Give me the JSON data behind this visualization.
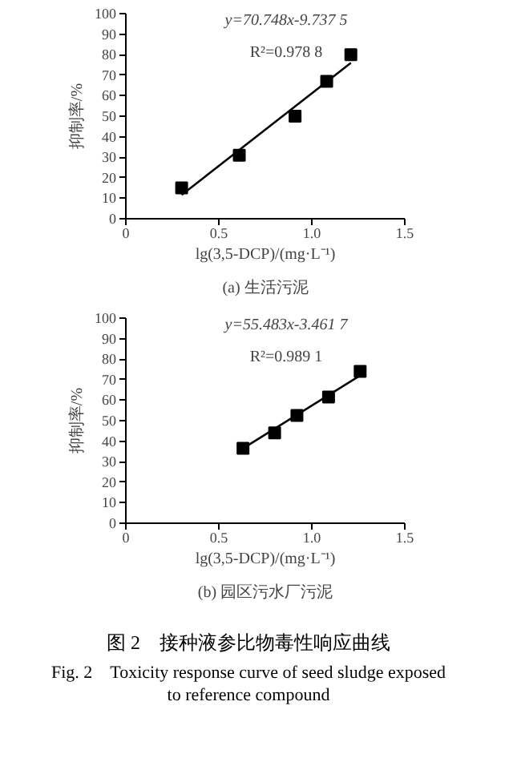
{
  "chart_data": [
    {
      "type": "scatter",
      "subtitle": "(a) 生活污泥",
      "xlabel": "lg(3,5-DCP)/(mg·L⁻¹)",
      "ylabel": "抑制率/%",
      "xlim": [
        0,
        1.5
      ],
      "xticks": [
        0,
        0.5,
        {
          "value": 1.0,
          "label": "1.0"
        },
        1.5
      ],
      "ylim": [
        0,
        100
      ],
      "yticks": [
        0,
        10,
        20,
        30,
        40,
        50,
        60,
        70,
        80,
        90,
        100
      ],
      "grid": false,
      "marker": "square",
      "annotations": [
        "y=70.748x-9.737 5",
        "R²=0.978 8"
      ],
      "series": [
        {
          "color": "#000000",
          "x": [
            0.3,
            0.61,
            0.91,
            1.08,
            1.21
          ],
          "values": [
            15,
            31,
            50,
            67,
            80
          ]
        },
        {
          "type": "line",
          "color": "#000000",
          "marker": "none",
          "x": [
            0.3,
            1.21
          ],
          "values": [
            11.6,
            76
          ]
        }
      ]
    },
    {
      "type": "scatter",
      "subtitle": "(b) 园区污水厂污泥",
      "xlabel": "lg(3,5-DCP)/(mg·L⁻¹)",
      "ylabel": "抑制率/%",
      "xlim": [
        0,
        1.5
      ],
      "xticks": [
        0,
        0.5,
        {
          "value": 1.0,
          "label": "1.0"
        },
        1.5
      ],
      "ylim": [
        0,
        100
      ],
      "yticks": [
        0,
        10,
        20,
        30,
        40,
        50,
        60,
        70,
        80,
        90,
        100
      ],
      "grid": false,
      "marker": "square",
      "annotations": [
        "y=55.483x-3.461 7",
        "R²=0.989 1",
        "图 2　接种液参比物毒性响应曲线",
        "Fig. 2　Toxicity response curve of seed sludge exposed to reference compound"
      ],
      "series": [
        {
          "color": "#000000",
          "x": [
            0.63,
            0.8,
            0.92,
            1.09,
            1.26
          ],
          "values": [
            36.5,
            44,
            52.5,
            61.5,
            74
          ]
        },
        {
          "type": "line",
          "color": "#000000",
          "marker": "none",
          "x": [
            0.63,
            1.26
          ],
          "values": [
            36.5,
            72
          ]
        }
      ]
    }
  ]
}
